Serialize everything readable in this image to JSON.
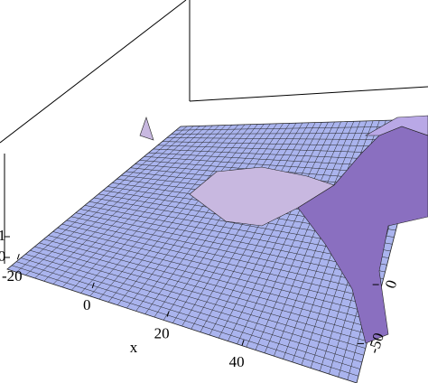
{
  "chart_data": {
    "type": "surface3d",
    "x_label": "x",
    "xlim": [
      -22,
      60
    ],
    "xticks": [
      -20,
      0,
      20,
      40
    ],
    "ylim": [
      -65,
      10
    ],
    "yticks": [
      -50,
      0
    ],
    "zlim": [
      0,
      1
    ],
    "zticks": [
      0,
      1
    ],
    "color": "#aab4ee"
  }
}
